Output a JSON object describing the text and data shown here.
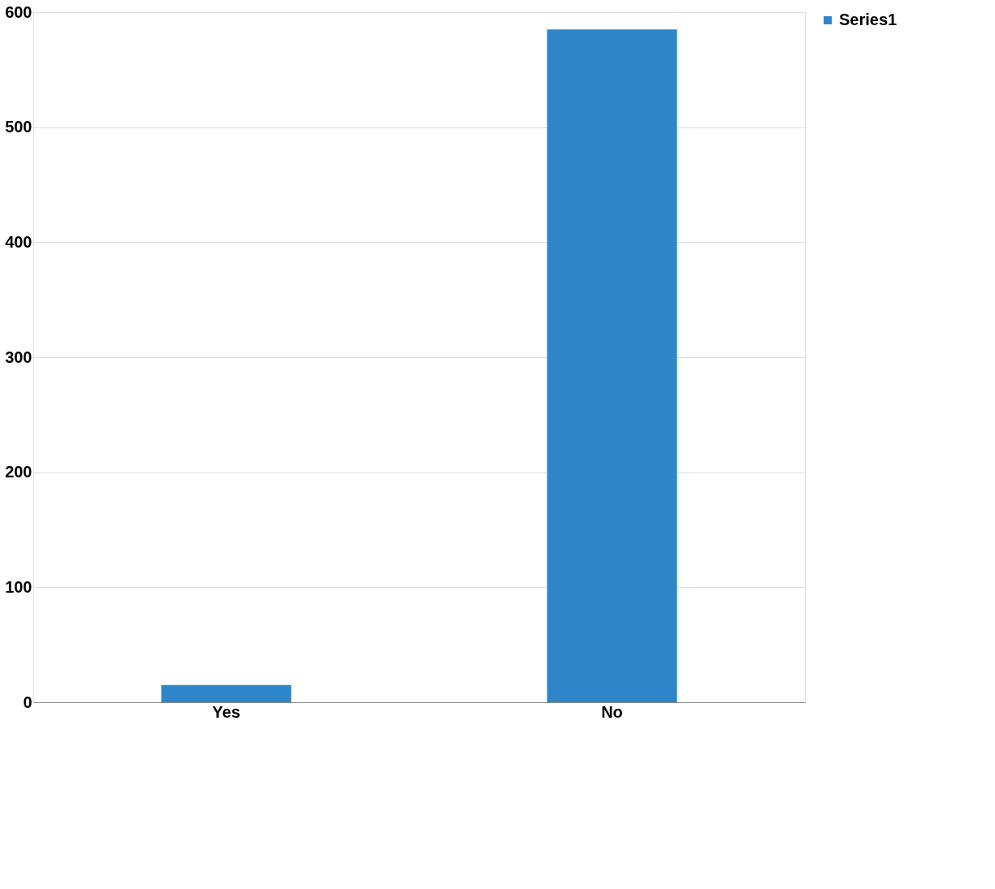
{
  "chart_data": {
    "type": "bar",
    "categories": [
      "Yes",
      "No"
    ],
    "series": [
      {
        "name": "Series1",
        "color": "#2e86c8",
        "values": [
          15,
          585
        ]
      }
    ],
    "ylim": [
      0,
      600
    ],
    "yticks": [
      0,
      100,
      200,
      300,
      400,
      500,
      600
    ],
    "grid": "y",
    "legend": "right"
  }
}
